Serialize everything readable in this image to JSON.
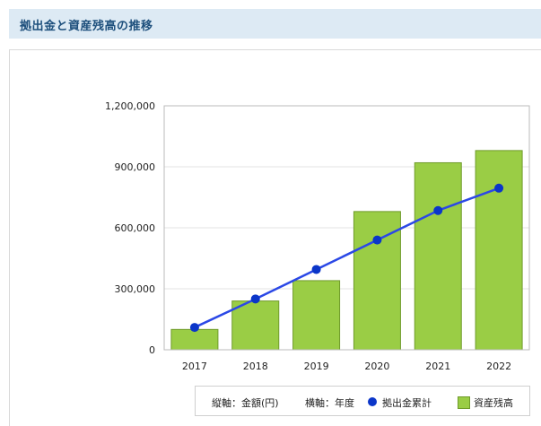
{
  "header": {
    "title": "拠出金と資産残高の推移"
  },
  "legend": {
    "axis_note_y": "縦軸：金額(円)",
    "axis_note_x": "横軸：年度",
    "line_label": "拠出金累計",
    "bar_label": "資産残高"
  },
  "colors": {
    "bar_fill": "#9acd45",
    "bar_stroke": "#6f9b2a",
    "line": "#2b48e6",
    "point": "#0b36c9",
    "header_bg": "#ddeaf4",
    "header_text": "#1d4f7c"
  },
  "chart_data": {
    "type": "bar",
    "categories": [
      "2017",
      "2018",
      "2019",
      "2020",
      "2021",
      "2022"
    ],
    "series": [
      {
        "name": "資産残高",
        "type": "bar",
        "values": [
          100000,
          240000,
          340000,
          680000,
          920000,
          980000
        ]
      },
      {
        "name": "拠出金累計",
        "type": "line",
        "values": [
          110000,
          250000,
          395000,
          540000,
          685000,
          795000
        ]
      }
    ],
    "yticks": [
      "0",
      "300,000",
      "600,000",
      "900,000",
      "1,200,000"
    ],
    "ylim": [
      0,
      1200000
    ],
    "grid": true,
    "legend_position": "bottom-right"
  }
}
